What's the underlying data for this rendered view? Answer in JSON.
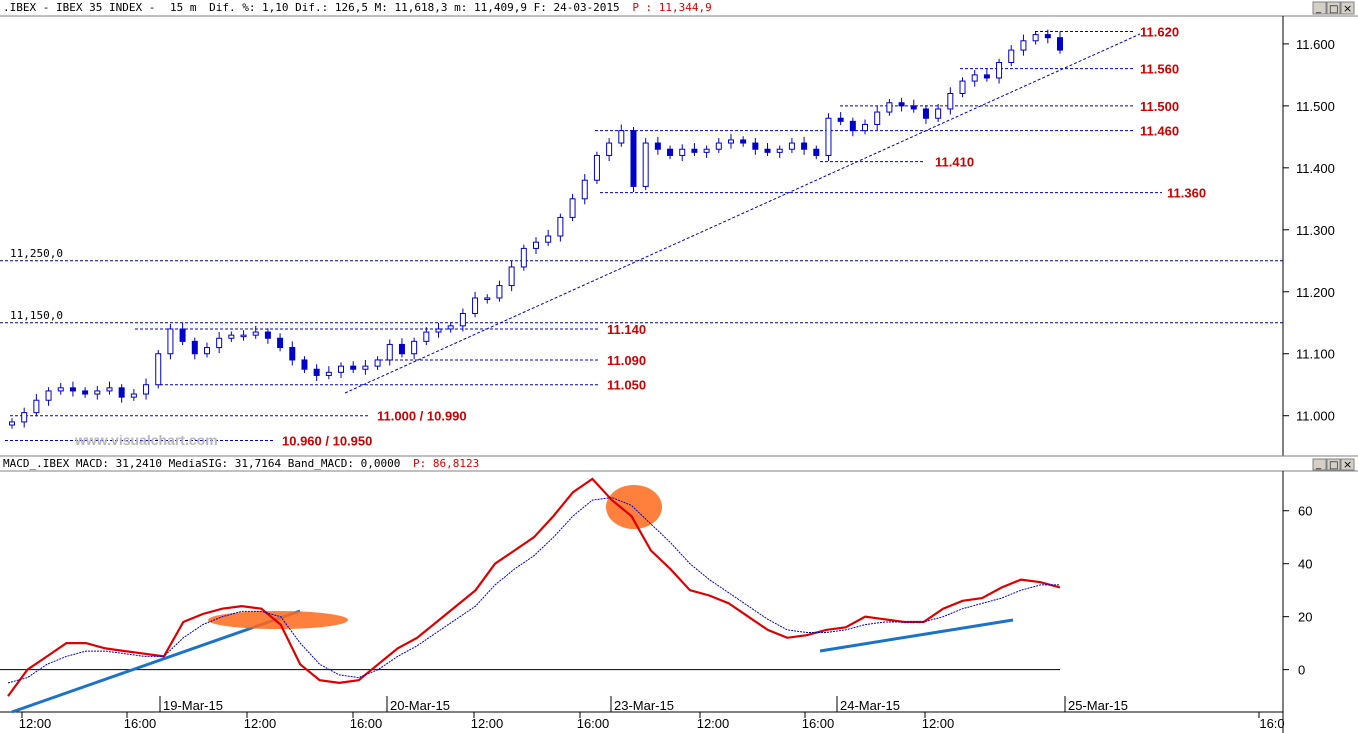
{
  "header": {
    "symbol": ".IBEX - IBEX 35 INDEX -",
    "interval": "15 m",
    "stats": "Dif. %: 1,10 Dif.: 126,5 M: 11,618,3 m: 11,409,9 F: 24-03-2015",
    "price_label": "P : 11,344,9"
  },
  "macd_header": {
    "main": "MACD_.IBEX MACD: 31,2410 MediaSIG: 31,7164 Band_MACD: 0,0000",
    "p_label": "P: 86,8123"
  },
  "watermark": "www.visualchart.com",
  "window_buttons": [
    "_",
    "□",
    "×"
  ],
  "colors": {
    "bull": "#ffffff",
    "bear": "#0000cc",
    "candle_outline": "#0000cc",
    "level_line": "#0000cc",
    "level_label": "#cc0000",
    "macd": "#dd0000",
    "signal": "#0000cc",
    "trendline": "#1a73c8",
    "highlight": "#ff6a1a",
    "header_red": "#dd0000"
  },
  "chart_data": [
    {
      "type": "candlestick",
      "title": "IBEX 35 INDEX 15 m",
      "ylim": [
        10935,
        11645
      ],
      "y_ticks": [
        "11.000",
        "11.100",
        "11.200",
        "11.300",
        "11.400",
        "11.500",
        "11.600"
      ],
      "x_day_labels": [
        "19-Mar-15",
        "20-Mar-15",
        "23-Mar-15",
        "24-Mar-15",
        "25-Mar-15"
      ],
      "x_time_labels": [
        "12:00",
        "16:00",
        "12:00",
        "16:00",
        "12:00",
        "16:00",
        "12:00",
        "16:00",
        "12:00",
        "16:0"
      ],
      "y_sample_closes": [
        10990,
        11005,
        11025,
        11040,
        11045,
        11040,
        11035,
        11040,
        11045,
        11030,
        11035,
        11050,
        11100,
        11140,
        11120,
        11100,
        11110,
        11125,
        11130,
        11130,
        11135,
        11125,
        11110,
        11090,
        11075,
        11065,
        11070,
        11080,
        11075,
        11080,
        11090,
        11115,
        11100,
        11120,
        11135,
        11140,
        11145,
        11165,
        11190,
        11190,
        11210,
        11240,
        11270,
        11280,
        11290,
        11320,
        11350,
        11380,
        11420,
        11440,
        11460,
        11370,
        11440,
        11430,
        11420,
        11430,
        11425,
        11430,
        11440,
        11445,
        11440,
        11430,
        11425,
        11430,
        11440,
        11430,
        11420,
        11480,
        11475,
        11460,
        11470,
        11490,
        11505,
        11500,
        11495,
        11480,
        11495,
        11520,
        11540,
        11550,
        11545,
        11570,
        11590,
        11605,
        11615,
        11610,
        11590
      ],
      "levels": [
        {
          "value": 11620,
          "label": "11.620"
        },
        {
          "value": 11560,
          "label": "11.560"
        },
        {
          "value": 11500,
          "label": "11.500"
        },
        {
          "value": 11460,
          "label": "11.460"
        },
        {
          "value": 11410,
          "label": "11.410"
        },
        {
          "value": 11360,
          "label": "11.360"
        },
        {
          "value": 11140,
          "label": "11.140"
        },
        {
          "value": 11090,
          "label": "11.090"
        },
        {
          "value": 11050,
          "label": "11.050"
        },
        {
          "value": 11000,
          "label": "11.000 / 10.990"
        },
        {
          "value": 10960,
          "label": "10.960 / 10.950"
        }
      ],
      "reference_lines": [
        {
          "value": 11250,
          "label": "11,250,0"
        },
        {
          "value": 11150,
          "label": "11,150,0"
        }
      ]
    },
    {
      "type": "line",
      "title": "MACD",
      "ylim": [
        -16,
        75
      ],
      "y_ticks": [
        "60",
        "40",
        "20",
        "0"
      ],
      "series": [
        {
          "name": "MACD",
          "values": [
            -10,
            0,
            5,
            10,
            10,
            8,
            7,
            6,
            5,
            18,
            21,
            23,
            24,
            23,
            17,
            2,
            -4,
            -5,
            -4,
            2,
            8,
            12,
            18,
            24,
            30,
            40,
            45,
            50,
            58,
            67,
            72,
            64,
            58,
            45,
            38,
            30,
            28,
            25,
            20,
            15,
            12,
            13,
            15,
            16,
            20,
            19,
            18,
            18,
            23,
            26,
            27,
            31,
            34,
            33,
            31
          ]
        },
        {
          "name": "MediaSIG",
          "values": [
            -5,
            -3,
            2,
            5,
            7,
            7,
            6,
            5,
            5,
            12,
            17,
            20,
            22,
            22,
            20,
            10,
            2,
            -2,
            -3,
            0,
            5,
            9,
            14,
            19,
            24,
            32,
            38,
            43,
            50,
            58,
            64,
            65,
            62,
            55,
            48,
            40,
            34,
            29,
            24,
            19,
            15,
            14,
            14,
            15,
            17,
            18,
            18,
            18,
            20,
            23,
            25,
            27,
            30,
            32,
            32
          ]
        }
      ]
    }
  ]
}
